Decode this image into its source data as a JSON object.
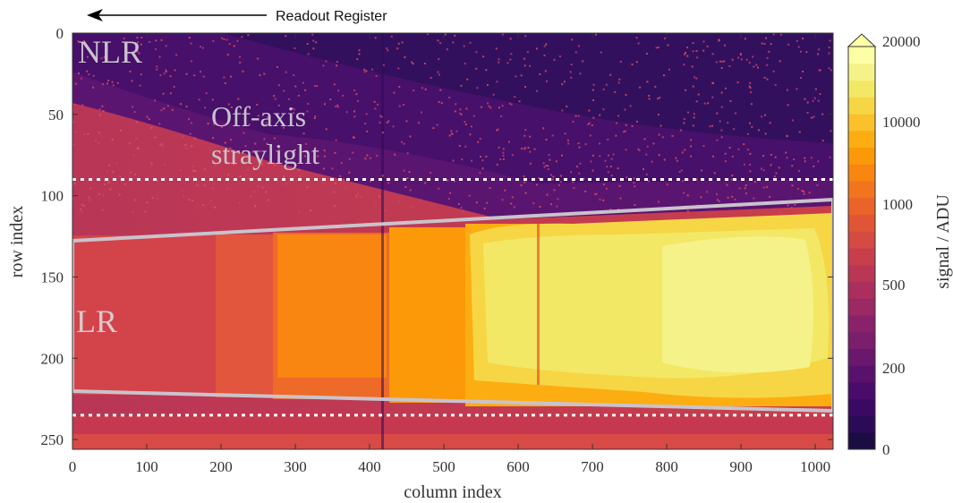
{
  "chart_data": {
    "type": "heatmap",
    "xlabel": "column index",
    "ylabel": "row index",
    "xlim": [
      0,
      1024
    ],
    "ylim": [
      256,
      0
    ],
    "x_ticks": [
      0,
      100,
      200,
      300,
      400,
      500,
      600,
      700,
      800,
      900,
      1000
    ],
    "y_ticks": [
      0,
      50,
      100,
      150,
      200,
      250
    ],
    "colorbar": {
      "label": "signal / ADU",
      "ticks": [
        0,
        200,
        500,
        1000,
        10000,
        20000
      ],
      "tick_labels": [
        "0",
        "200",
        "500",
        "1000",
        "10000",
        "20000"
      ],
      "colors": [
        "#1b0c41",
        "#2b0b57",
        "#3a0963",
        "#4a0c6b",
        "#5a116e",
        "#6a176e",
        "#7b1e6c",
        "#8a226a",
        "#9b2964",
        "#ab2f5e",
        "#ba3655",
        "#c83f4b",
        "#d54a41",
        "#e05536",
        "#ea632b",
        "#f2741e",
        "#f88611",
        "#fb9908",
        "#fcad12",
        "#fac12a",
        "#f6d645",
        "#f3e866",
        "#f5f28a",
        "#fcffa4"
      ],
      "extend": "max"
    },
    "regions": [
      {
        "label": "NLR",
        "rows": [
          0,
          90
        ]
      },
      {
        "label": "LR",
        "top_edge": [
          [
            0,
            127
          ],
          [
            1024,
            101
          ]
        ],
        "bottom_edge": [
          [
            0,
            220
          ],
          [
            1024,
            232
          ]
        ]
      }
    ],
    "reference_rows": [
      90,
      235
    ],
    "annotations": {
      "readout": "Readout Register",
      "offaxis_line1": "Off-axis",
      "offaxis_line2": "straylight"
    }
  }
}
